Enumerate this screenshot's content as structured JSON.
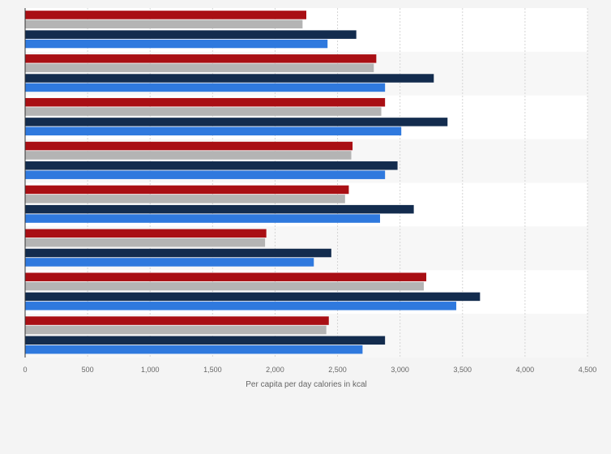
{
  "chart_data": {
    "type": "bar",
    "orientation": "horizontal",
    "title": "",
    "xlabel": "Per capita per day calories in kcal",
    "ylabel": "",
    "xlim": [
      0,
      4500
    ],
    "x_ticks": [
      0,
      500,
      1000,
      1500,
      2000,
      2500,
      3000,
      3500,
      4000,
      4500
    ],
    "x_tick_labels": [
      "0",
      "500",
      "1,000",
      "1,500",
      "2,000",
      "2,500",
      "3,000",
      "3,500",
      "4,000",
      "4,500"
    ],
    "grid": "vertical dashed",
    "legend": "none",
    "categories": [
      "",
      "",
      "",
      "",
      "",
      "",
      "",
      ""
    ],
    "series": [
      {
        "color": "#a90f14",
        "values": [
          2250,
          2810,
          2880,
          2620,
          2590,
          1930,
          3210,
          2430
        ]
      },
      {
        "color": "#b4b4b4",
        "values": [
          2220,
          2790,
          2850,
          2610,
          2560,
          1920,
          3190,
          2410
        ]
      },
      {
        "color": "#132c4e",
        "values": [
          2650,
          3270,
          3380,
          2980,
          3110,
          2450,
          3640,
          2880
        ]
      },
      {
        "color": "#2f79de",
        "values": [
          2420,
          2880,
          3010,
          2880,
          2840,
          2310,
          3450,
          2700
        ]
      }
    ]
  }
}
